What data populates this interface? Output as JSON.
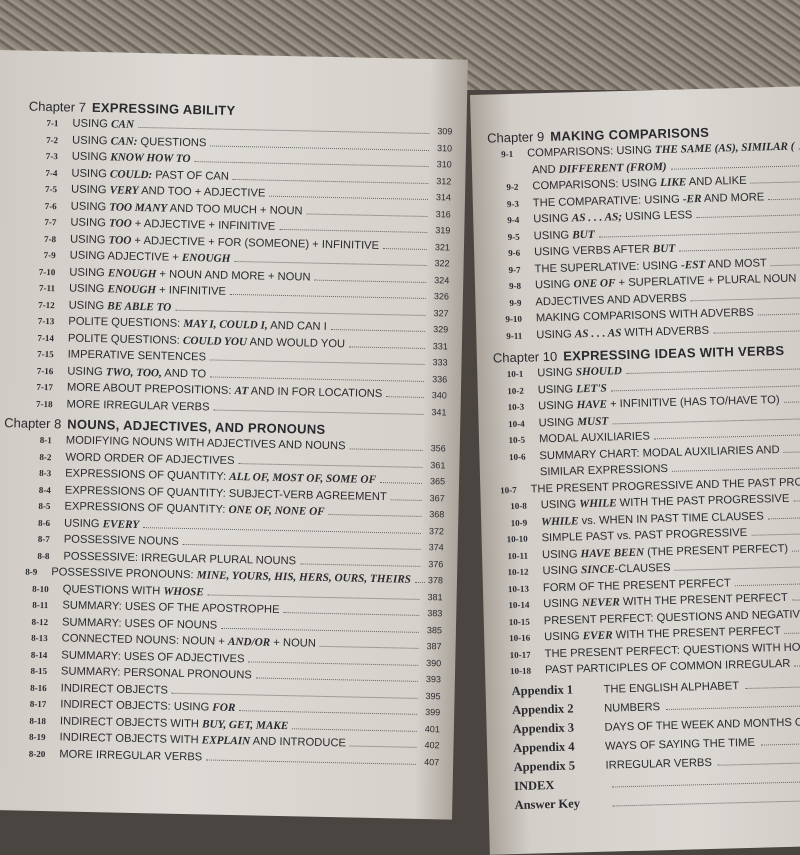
{
  "left_page": {
    "chapters": [
      {
        "num": "Chapter 7",
        "title": "EXPRESSING ABILITY",
        "items": [
          {
            "sec": "7-1",
            "pre": "USING ",
            "em": "CAN",
            "post": "",
            "page": "309"
          },
          {
            "sec": "7-2",
            "pre": "USING ",
            "em": "CAN:",
            "post": " QUESTIONS",
            "page": "310"
          },
          {
            "sec": "7-3",
            "pre": "USING ",
            "em": "KNOW HOW TO",
            "post": "",
            "page": "310"
          },
          {
            "sec": "7-4",
            "pre": "USING ",
            "em": "COULD:",
            "post": " PAST OF CAN",
            "page": "312"
          },
          {
            "sec": "7-5",
            "pre": "USING ",
            "em": "VERY",
            "post": " AND TOO + ADJECTIVE",
            "page": "314"
          },
          {
            "sec": "7-6",
            "pre": "USING ",
            "em": "TOO MANY",
            "post": " AND TOO MUCH + NOUN",
            "page": "316"
          },
          {
            "sec": "7-7",
            "pre": "USING ",
            "em": "TOO",
            "post": " + ADJECTIVE + INFINITIVE",
            "page": "319"
          },
          {
            "sec": "7-8",
            "pre": "USING ",
            "em": "TOO",
            "post": " + ADJECTIVE + FOR (SOMEONE) + INFINITIVE",
            "page": "321"
          },
          {
            "sec": "7-9",
            "pre": "USING ADJECTIVE + ",
            "em": "ENOUGH",
            "post": "",
            "page": "322"
          },
          {
            "sec": "7-10",
            "pre": "USING ",
            "em": "ENOUGH",
            "post": " + NOUN AND MORE + NOUN",
            "page": "324"
          },
          {
            "sec": "7-11",
            "pre": "USING ",
            "em": "ENOUGH",
            "post": " + INFINITIVE",
            "page": "326"
          },
          {
            "sec": "7-12",
            "pre": "USING ",
            "em": "BE ABLE TO",
            "post": "",
            "page": "327"
          },
          {
            "sec": "7-13",
            "pre": "POLITE QUESTIONS: ",
            "em": "MAY I, COULD I,",
            "post": " AND CAN I",
            "page": "329"
          },
          {
            "sec": "7-14",
            "pre": "POLITE QUESTIONS: ",
            "em": "COULD YOU",
            "post": " AND WOULD YOU",
            "page": "331"
          },
          {
            "sec": "7-15",
            "pre": "IMPERATIVE SENTENCES",
            "em": "",
            "post": "",
            "page": "333"
          },
          {
            "sec": "7-16",
            "pre": "USING ",
            "em": "TWO, TOO,",
            "post": " AND TO",
            "page": "336"
          },
          {
            "sec": "7-17",
            "pre": "MORE ABOUT PREPOSITIONS: ",
            "em": "AT",
            "post": " AND IN FOR LOCATIONS",
            "page": "340"
          },
          {
            "sec": "7-18",
            "pre": "MORE IRREGULAR VERBS",
            "em": "",
            "post": "",
            "page": "341"
          }
        ]
      },
      {
        "num": "Chapter 8",
        "title": "NOUNS, ADJECTIVES, AND PRONOUNS",
        "items": [
          {
            "sec": "8-1",
            "pre": "MODIFYING NOUNS WITH ADJECTIVES AND NOUNS",
            "em": "",
            "post": "",
            "page": "356"
          },
          {
            "sec": "8-2",
            "pre": "WORD ORDER OF ADJECTIVES",
            "em": "",
            "post": "",
            "page": "361"
          },
          {
            "sec": "8-3",
            "pre": "EXPRESSIONS OF QUANTITY: ",
            "em": "ALL OF, MOST OF, SOME OF",
            "post": "",
            "page": "365"
          },
          {
            "sec": "8-4",
            "pre": "EXPRESSIONS OF QUANTITY: SUBJECT-VERB AGREEMENT",
            "em": "",
            "post": "",
            "page": "367"
          },
          {
            "sec": "8-5",
            "pre": "EXPRESSIONS OF QUANTITY: ",
            "em": "ONE OF, NONE OF",
            "post": "",
            "page": "368"
          },
          {
            "sec": "8-6",
            "pre": "USING ",
            "em": "EVERY",
            "post": "",
            "page": "372"
          },
          {
            "sec": "8-7",
            "pre": "POSSESSIVE NOUNS",
            "em": "",
            "post": "",
            "page": "374"
          },
          {
            "sec": "8-8",
            "pre": "POSSESSIVE: IRREGULAR PLURAL NOUNS",
            "em": "",
            "post": "",
            "page": "376"
          },
          {
            "sec": "8-9",
            "pre": "POSSESSIVE PRONOUNS: ",
            "em": "MINE, YOURS, HIS, HERS, OURS, THEIRS",
            "post": "",
            "page": "378"
          },
          {
            "sec": "8-10",
            "pre": "QUESTIONS WITH ",
            "em": "WHOSE",
            "post": "",
            "page": "381"
          },
          {
            "sec": "8-11",
            "pre": "SUMMARY: USES OF THE APOSTROPHE",
            "em": "",
            "post": "",
            "page": "383"
          },
          {
            "sec": "8-12",
            "pre": "SUMMARY: USES OF NOUNS",
            "em": "",
            "post": "",
            "page": "385"
          },
          {
            "sec": "8-13",
            "pre": "CONNECTED NOUNS: NOUN + ",
            "em": "AND/OR",
            "post": " + NOUN",
            "page": "387"
          },
          {
            "sec": "8-14",
            "pre": "SUMMARY: USES OF ADJECTIVES",
            "em": "",
            "post": "",
            "page": "390"
          },
          {
            "sec": "8-15",
            "pre": "SUMMARY: PERSONAL PRONOUNS",
            "em": "",
            "post": "",
            "page": "393"
          },
          {
            "sec": "8-16",
            "pre": "INDIRECT OBJECTS",
            "em": "",
            "post": "",
            "page": "395"
          },
          {
            "sec": "8-17",
            "pre": "INDIRECT OBJECTS: USING ",
            "em": "FOR",
            "post": "",
            "page": "399"
          },
          {
            "sec": "8-18",
            "pre": "INDIRECT OBJECTS WITH ",
            "em": "BUY, GET, MAKE",
            "post": "",
            "page": "401"
          },
          {
            "sec": "8-19",
            "pre": "INDIRECT OBJECTS WITH ",
            "em": "EXPLAIN",
            "post": " AND INTRODUCE",
            "page": "402"
          },
          {
            "sec": "8-20",
            "pre": "MORE IRREGULAR VERBS",
            "em": "",
            "post": "",
            "page": "407"
          }
        ]
      }
    ]
  },
  "right_page": {
    "chapters": [
      {
        "num": "Chapter 9",
        "title": "MAKING COMPARISONS",
        "items": [
          {
            "sec": "9-1",
            "pre": "COMPARISONS: USING ",
            "em": "THE SAME (AS), SIMILAR (",
            "post": "",
            "page": ""
          },
          {
            "sec": "",
            "pre": "AND ",
            "em": "DIFFERENT (FROM)",
            "post": "",
            "page": ""
          },
          {
            "sec": "9-2",
            "pre": "COMPARISONS: USING ",
            "em": "LIKE",
            "post": " AND ALIKE",
            "page": ""
          },
          {
            "sec": "9-3",
            "pre": "THE COMPARATIVE: USING ",
            "em": "-ER",
            "post": " AND MORE",
            "page": ""
          },
          {
            "sec": "9-4",
            "pre": "USING ",
            "em": "AS . . . AS;",
            "post": " USING LESS",
            "page": ""
          },
          {
            "sec": "9-5",
            "pre": "USING ",
            "em": "BUT",
            "post": "",
            "page": ""
          },
          {
            "sec": "9-6",
            "pre": "USING VERBS AFTER ",
            "em": "BUT",
            "post": "",
            "page": ""
          },
          {
            "sec": "9-7",
            "pre": "THE SUPERLATIVE: USING ",
            "em": "-EST",
            "post": " AND MOST",
            "page": ""
          },
          {
            "sec": "9-8",
            "pre": "USING ",
            "em": "ONE OF",
            "post": " + SUPERLATIVE + PLURAL NOUN",
            "page": ""
          },
          {
            "sec": "9-9",
            "pre": "ADJECTIVES AND ADVERBS",
            "em": "",
            "post": "",
            "page": ""
          },
          {
            "sec": "9-10",
            "pre": "MAKING COMPARISONS WITH ADVERBS",
            "em": "",
            "post": "",
            "page": ""
          },
          {
            "sec": "9-11",
            "pre": "USING ",
            "em": "AS . . . AS",
            "post": " WITH ADVERBS",
            "page": ""
          }
        ]
      },
      {
        "num": "Chapter 10",
        "title": "EXPRESSING IDEAS WITH VERBS",
        "items": [
          {
            "sec": "10-1",
            "pre": "USING ",
            "em": "SHOULD",
            "post": "",
            "page": ""
          },
          {
            "sec": "10-2",
            "pre": "USING ",
            "em": "LET'S",
            "post": "",
            "page": ""
          },
          {
            "sec": "10-3",
            "pre": "USING ",
            "em": "HAVE",
            "post": " + INFINITIVE (HAS TO/HAVE TO)",
            "page": ""
          },
          {
            "sec": "10-4",
            "pre": "USING ",
            "em": "MUST",
            "post": "",
            "page": ""
          },
          {
            "sec": "10-5",
            "pre": "MODAL AUXILIARIES",
            "em": "",
            "post": "",
            "page": ""
          },
          {
            "sec": "10-6",
            "pre": "SUMMARY CHART: MODAL AUXILIARIES AND",
            "em": "",
            "post": "",
            "page": ""
          },
          {
            "sec": "",
            "pre": "SIMILAR EXPRESSIONS",
            "em": "",
            "post": "",
            "page": ""
          },
          {
            "sec": "10-7",
            "pre": "THE PRESENT PROGRESSIVE AND THE PAST PRO",
            "em": "",
            "post": "",
            "page": ""
          },
          {
            "sec": "10-8",
            "pre": "USING ",
            "em": "WHILE",
            "post": " WITH THE PAST PROGRESSIVE",
            "page": ""
          },
          {
            "sec": "10-9",
            "pre": "",
            "em": "WHILE",
            "post": " vs. WHEN IN PAST TIME CLAUSES",
            "page": ""
          },
          {
            "sec": "10-10",
            "pre": "SIMPLE PAST vs. PAST PROGRESSIVE",
            "em": "",
            "post": "",
            "page": ""
          },
          {
            "sec": "10-11",
            "pre": "USING ",
            "em": "HAVE BEEN",
            "post": " (THE PRESENT PERFECT)",
            "page": ""
          },
          {
            "sec": "10-12",
            "pre": "USING ",
            "em": "SINCE",
            "post": "-CLAUSES",
            "page": ""
          },
          {
            "sec": "10-13",
            "pre": "FORM OF THE PRESENT PERFECT",
            "em": "",
            "post": "",
            "page": ""
          },
          {
            "sec": "10-14",
            "pre": "USING ",
            "em": "NEVER",
            "post": " WITH THE PRESENT PERFECT",
            "page": ""
          },
          {
            "sec": "10-15",
            "pre": "PRESENT PERFECT: QUESTIONS AND NEGATIV",
            "em": "",
            "post": "",
            "page": ""
          },
          {
            "sec": "10-16",
            "pre": "USING ",
            "em": "EVER",
            "post": " WITH THE PRESENT PERFECT",
            "page": ""
          },
          {
            "sec": "10-17",
            "pre": "THE PRESENT PERFECT: QUESTIONS WITH HO",
            "em": "",
            "post": "",
            "page": ""
          },
          {
            "sec": "10-18",
            "pre": "PAST PARTICIPLES OF COMMON IRREGULAR",
            "em": "",
            "post": "",
            "page": ""
          }
        ]
      }
    ],
    "appendices": [
      {
        "label": "Appendix 1",
        "title": "THE ENGLISH ALPHABET"
      },
      {
        "label": "Appendix 2",
        "title": "NUMBERS"
      },
      {
        "label": "Appendix 3",
        "title": "DAYS OF THE WEEK AND MONTHS OF T"
      },
      {
        "label": "Appendix 4",
        "title": "WAYS OF SAYING THE TIME"
      },
      {
        "label": "Appendix 5",
        "title": "IRREGULAR VERBS"
      },
      {
        "label": "INDEX",
        "title": ""
      },
      {
        "label": "Answer Key",
        "title": ""
      }
    ]
  }
}
